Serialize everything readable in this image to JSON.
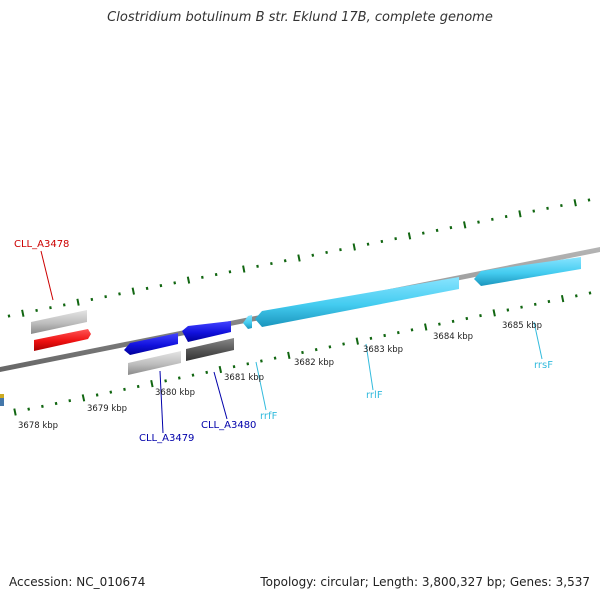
{
  "title": "Clostridium botulinum B str. Eklund 17B, complete genome",
  "footer": {
    "accession": "Accession: NC_010674",
    "summary": "Topology: circular; Length: 3,800,327 bp; Genes: 3,537"
  },
  "chart_data": {
    "type": "genome-map",
    "kbp_labels": [
      "3678 kbp",
      "3679 kbp",
      "3680 kbp",
      "3681 kbp",
      "3682 kbp",
      "3683 kbp",
      "3684 kbp",
      "3685 kbp"
    ],
    "gene_labels": [
      {
        "text": "CLL_A3478",
        "color": "#cc0000"
      },
      {
        "text": "CLL_A3479",
        "color": "#0000aa"
      },
      {
        "text": "CLL_A3480",
        "color": "#0000aa"
      },
      {
        "text": "rrfF",
        "color": "#33bbdd"
      },
      {
        "text": "rrlF",
        "color": "#33bbdd"
      },
      {
        "text": "rrsF",
        "color": "#33bbdd"
      }
    ],
    "colors": {
      "backbone": "#888888",
      "tick": "#116611",
      "cds_forward_gray": "#bbbbbb",
      "cds_red": "#ee1111",
      "cds_blue": "#1111dd",
      "cds_dark": "#555555",
      "rrna": "#44ccf0"
    }
  }
}
